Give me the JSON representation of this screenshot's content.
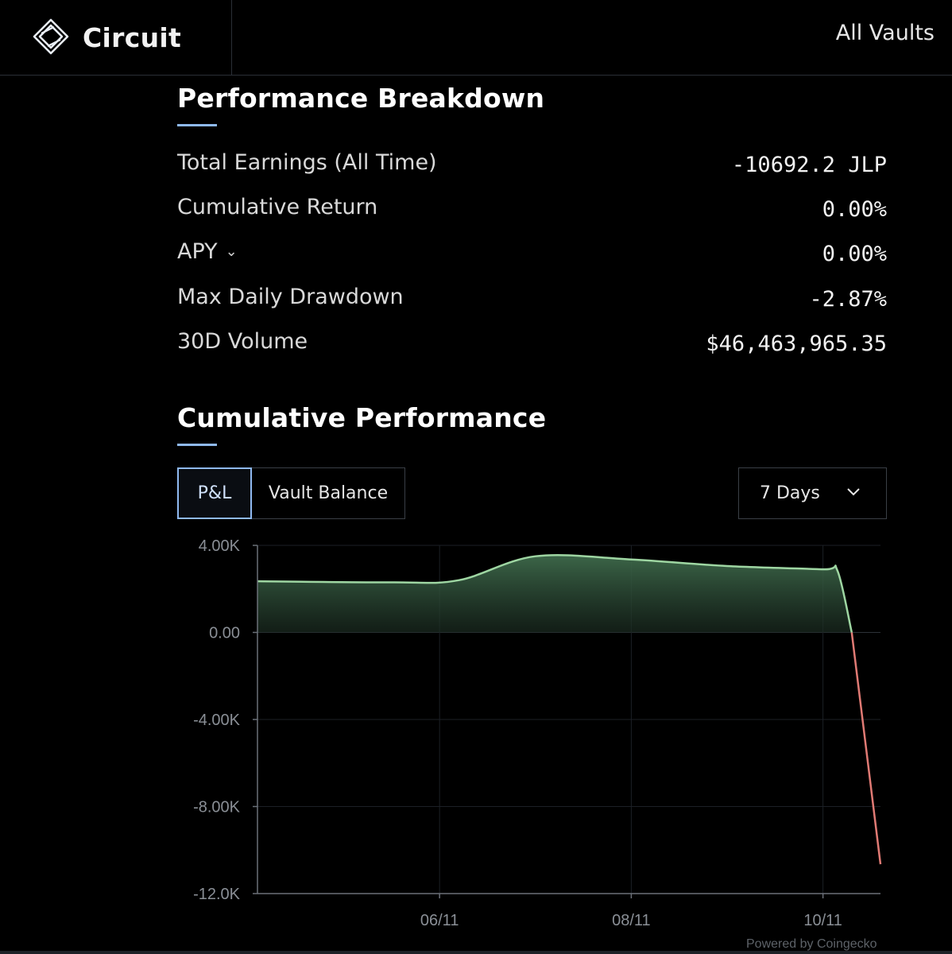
{
  "header": {
    "brand": "Circuit",
    "nav_all_vaults": "All Vaults"
  },
  "breakdown": {
    "title": "Performance Breakdown",
    "rows": [
      {
        "label": "Total Earnings (All Time)",
        "value": "-10692.2 JLP"
      },
      {
        "label": "Cumulative Return",
        "value": "0.00%"
      },
      {
        "label": "APY",
        "value": "0.00%"
      },
      {
        "label": "Max Daily Drawdown",
        "value": "-2.87%"
      },
      {
        "label": "30D Volume",
        "value": "$46,463,965.35"
      }
    ]
  },
  "cumulative": {
    "title": "Cumulative Performance",
    "tabs": [
      {
        "label": "P&L",
        "active": true
      },
      {
        "label": "Vault Balance",
        "active": false
      }
    ],
    "range": "7 Days",
    "powered_by": "Powered by Coingecko"
  },
  "colors": {
    "accent": "#8fb9f0",
    "positive": "#9ed6a2",
    "negative": "#e07a74",
    "background": "#000000"
  },
  "chart_data": {
    "type": "area",
    "yticks": [
      "4.00K",
      "0.00",
      "-4.00K",
      "-8.00K",
      "-12.0K"
    ],
    "ytick_values": [
      4000,
      0,
      -4000,
      -8000,
      -12000
    ],
    "xticks": [
      "06/11",
      "08/11",
      "10/11"
    ],
    "ylim": [
      -12000,
      4000
    ],
    "xlim": [
      4.1,
      10.6
    ],
    "x": [
      4.1,
      5.5,
      6.2,
      7.0,
      8.0,
      9.0,
      10.0,
      10.15,
      10.3,
      10.6
    ],
    "y": [
      2350,
      2300,
      2400,
      3500,
      3350,
      3050,
      2900,
      2850,
      0,
      -10650
    ],
    "grid": true,
    "legend": "none"
  }
}
